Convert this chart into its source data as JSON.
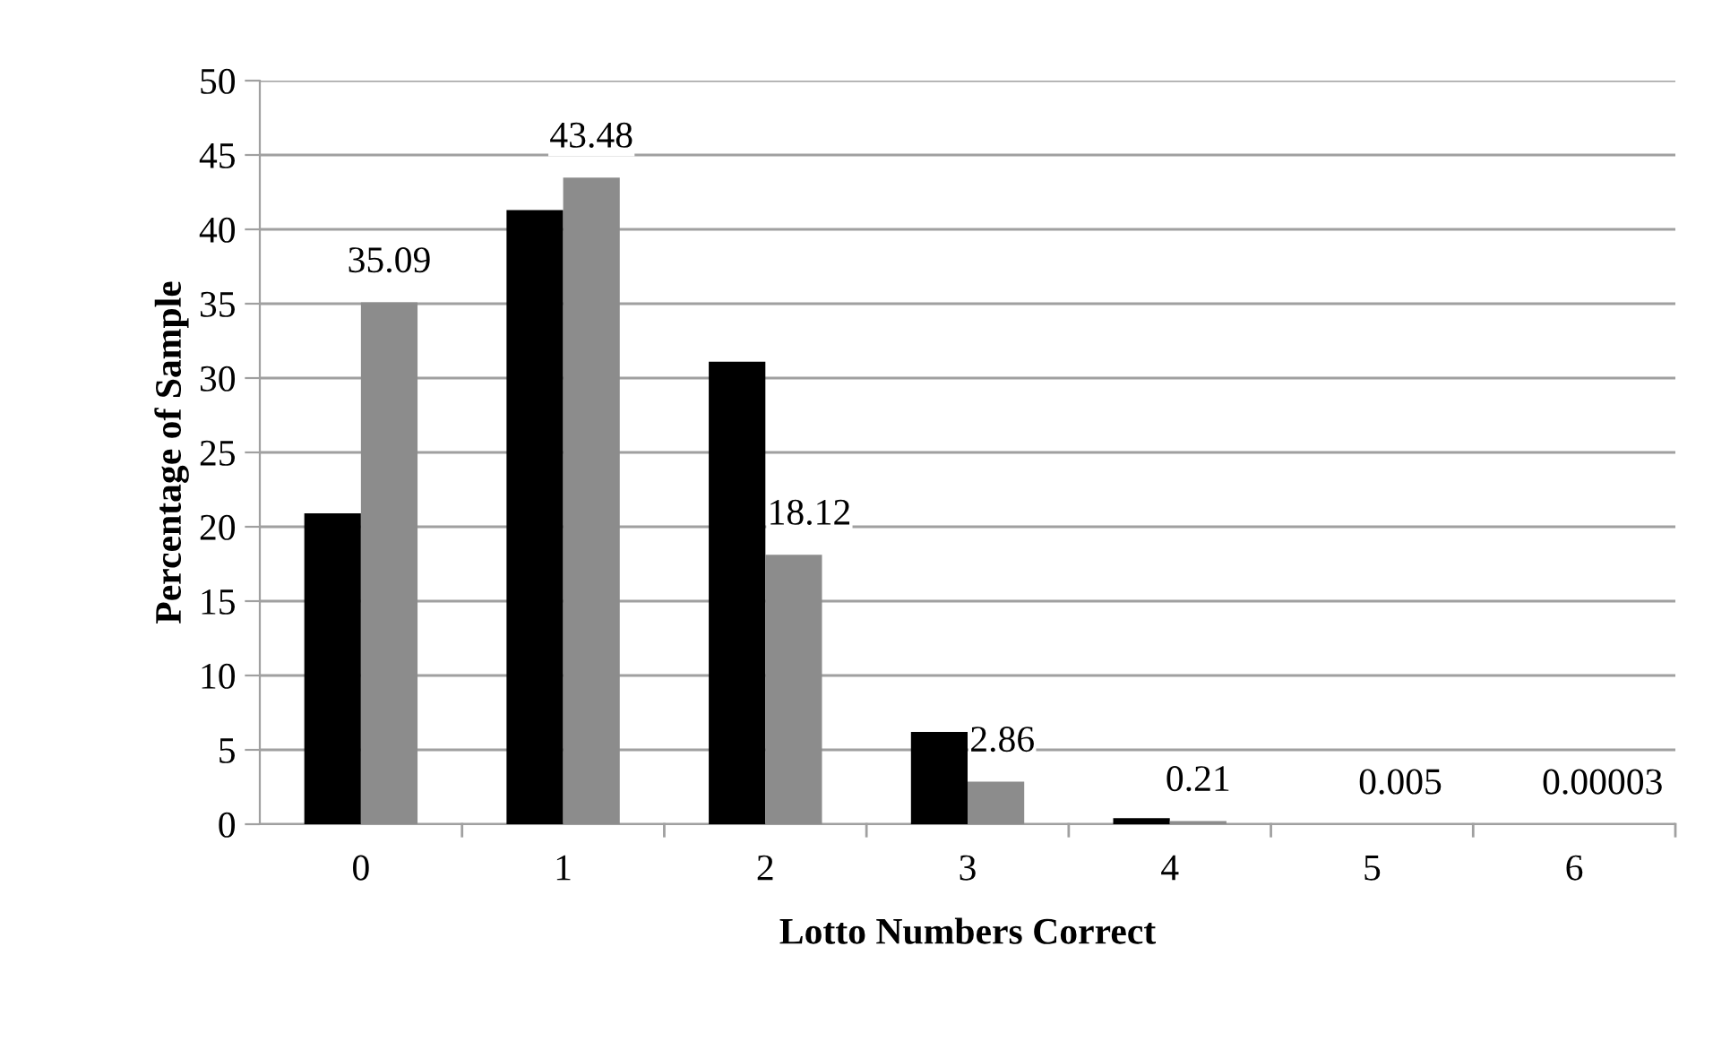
{
  "chart_data": {
    "type": "bar",
    "xlabel": "Lotto Numbers Correct",
    "ylabel": "Percentage of Sample",
    "categories": [
      "0",
      "1",
      "2",
      "3",
      "4",
      "5",
      "6"
    ],
    "series": [
      {
        "color": "#000000",
        "values": [
          20.9,
          41.3,
          31.1,
          6.2,
          0.4,
          0,
          0
        ]
      },
      {
        "color": "#8c8c8c",
        "values": [
          35.09,
          43.48,
          18.12,
          2.86,
          0.21,
          0.005,
          3e-05
        ],
        "value_labels": [
          "35.09",
          "43.48",
          "18.12",
          "2.86",
          "0.21",
          "0.005",
          "0.00003"
        ]
      }
    ],
    "ylim": [
      0,
      50
    ],
    "yticks": [
      0,
      5,
      10,
      15,
      20,
      25,
      30,
      35,
      40,
      45,
      50
    ],
    "grid": "y",
    "legend": false
  }
}
